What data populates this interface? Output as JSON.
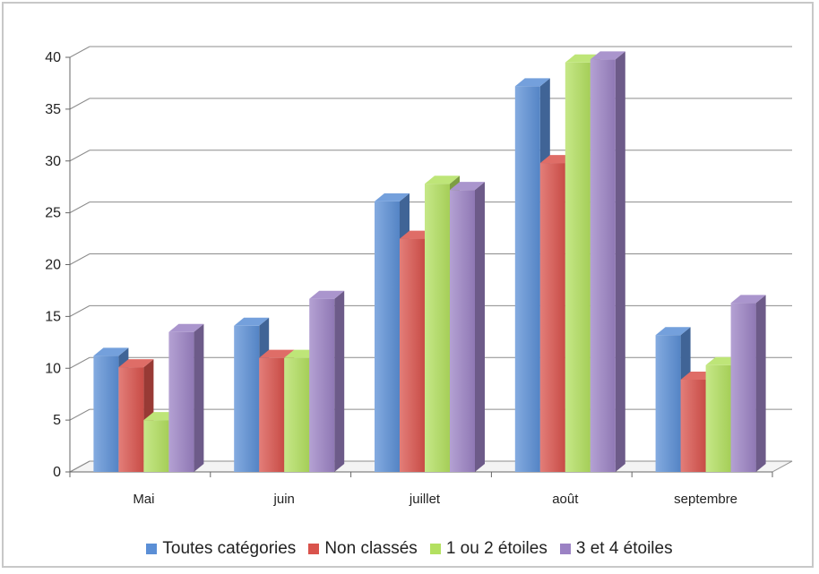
{
  "chart_data": {
    "type": "bar",
    "style": "3d-clustered-column",
    "categories": [
      "Mai",
      "juin",
      "juillet",
      "août",
      "septembre"
    ],
    "series": [
      {
        "name": "Toutes catégories",
        "color": "#5b8fd6",
        "values": [
          11.2,
          14.1,
          26.1,
          37.2,
          13.2
        ]
      },
      {
        "name": "Non classés",
        "color": "#d9534c",
        "values": [
          10.1,
          11.0,
          22.5,
          29.8,
          8.9
        ]
      },
      {
        "name": "1 ou 2 étoiles",
        "color": "#b3e060",
        "values": [
          5.0,
          11.0,
          27.8,
          39.5,
          10.3
        ]
      },
      {
        "name": "3 et 4 étoiles",
        "color": "#9b82c4",
        "values": [
          13.5,
          16.7,
          27.2,
          39.8,
          16.3
        ]
      }
    ],
    "ylim": [
      0,
      40
    ],
    "yticks": [
      "0",
      "5",
      "10",
      "15",
      "20",
      "25",
      "30",
      "35",
      "40"
    ],
    "grid": true,
    "legend_position": "bottom"
  }
}
